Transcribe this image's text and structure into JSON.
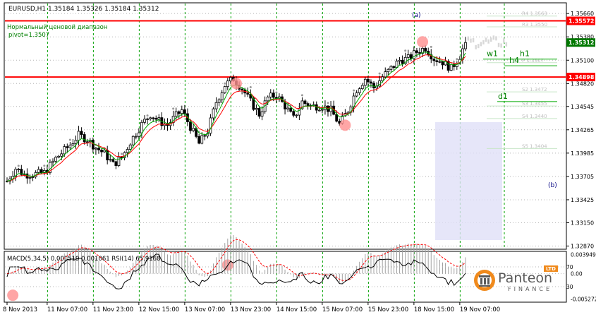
{
  "header": {
    "symbol_line": "EURUSD,H1  1.35184 1.35326 1.35184 1.35312",
    "indicator_name": "Нормальный ценовой диапазон",
    "pivot_label": "pivot=1.3507"
  },
  "markers": {
    "a": "(a)",
    "b": "(b)"
  },
  "levels": [
    {
      "name": "w1",
      "price": 1.3513
    },
    {
      "name": "h1",
      "price": 1.3513
    },
    {
      "name": "h4",
      "price": 1.3505
    },
    {
      "name": "d1",
      "price": 1.3462
    }
  ],
  "faded_levels": [
    "R4 1.3563",
    "R3 1.3550",
    "P 1.3507",
    "S2 1.3472",
    "S3 1.3455",
    "S4 1.3440",
    "S5 1.3404"
  ],
  "price_axis": {
    "ticks": [
      "1.35660",
      "1.35380",
      "1.35100",
      "1.34820",
      "1.34545",
      "1.34265",
      "1.33985",
      "1.33705",
      "1.33425",
      "1.33150",
      "1.32870"
    ],
    "tick_values": [
      1.3566,
      1.3538,
      1.351,
      1.3482,
      1.34545,
      1.34265,
      1.33985,
      1.33705,
      1.33425,
      1.3315,
      1.3287
    ],
    "highlight_labels": [
      {
        "text": "1.35572",
        "value": 1.35572,
        "style": "red"
      },
      {
        "text": "1.35312",
        "value": 1.35312,
        "style": "green"
      },
      {
        "text": "1.34898",
        "value": 1.34898,
        "style": "red"
      }
    ],
    "range": [
      1.3284,
      1.3578
    ]
  },
  "resistance_lines": [
    1.35572,
    1.34898
  ],
  "time_axis": {
    "labels": [
      "8 Nov 2013",
      "11 Nov 07:00",
      "11 Nov 23:00",
      "12 Nov 15:00",
      "13 Nov 07:00",
      "13 Nov 23:00",
      "14 Nov 15:00",
      "15 Nov 07:00",
      "15 Nov 23:00",
      "18 Nov 15:00",
      "19 Nov 07:00"
    ],
    "label_index": [
      0,
      14,
      30,
      46,
      62,
      78,
      94,
      110,
      126,
      142,
      158
    ]
  },
  "macd": {
    "title": "MACD(5,34,5) 0.001519 0.001061  RSI(14) 65.9168",
    "ticks": [
      "0.003949",
      "0.00",
      "-0.005272"
    ],
    "tick_values": [
      0.003949,
      0,
      -0.005272
    ],
    "rsi_ticks": [
      "70",
      "30"
    ]
  },
  "logo": {
    "brand": "Panteon",
    "sub": "FINANCE",
    "badge": "LTD"
  },
  "colors": {
    "axis": "#000000",
    "grid_green": "#00a000",
    "grid_gray": "#b4b4b4",
    "resistance": "#ff0000",
    "ma_green": "#00aa00",
    "ma_red": "#ff0000",
    "candle": "#000000",
    "highlight_circle": "#ff9090",
    "forecast_box": "#e0e0f8",
    "logo_orange": "#f08a1c",
    "logo_gray": "#5a5a5a"
  },
  "chart_data": {
    "type": "candlestick",
    "symbol": "EURUSD",
    "timeframe": "H1",
    "last": {
      "open": 1.35184,
      "high": 1.35326,
      "low": 1.35184,
      "close": 1.35312
    },
    "close_path": [
      [
        0,
        1.3365
      ],
      [
        3,
        1.338
      ],
      [
        6,
        1.3373
      ],
      [
        9,
        1.3373
      ],
      [
        13,
        1.3375
      ],
      [
        17,
        1.3392
      ],
      [
        21,
        1.3405
      ],
      [
        25,
        1.342
      ],
      [
        28,
        1.3415
      ],
      [
        31,
        1.3405
      ],
      [
        34,
        1.3398
      ],
      [
        37,
        1.3385
      ],
      [
        40,
        1.3393
      ],
      [
        43,
        1.3412
      ],
      [
        47,
        1.3433
      ],
      [
        50,
        1.3445
      ],
      [
        53,
        1.3437
      ],
      [
        56,
        1.3432
      ],
      [
        58,
        1.344
      ],
      [
        61,
        1.345
      ],
      [
        64,
        1.343
      ],
      [
        67,
        1.341
      ],
      [
        70,
        1.3425
      ],
      [
        73,
        1.346
      ],
      [
        76,
        1.348
      ],
      [
        79,
        1.3488
      ],
      [
        82,
        1.3476
      ],
      [
        85,
        1.346
      ],
      [
        88,
        1.3445
      ],
      [
        91,
        1.3465
      ],
      [
        94,
        1.3468
      ],
      [
        97,
        1.3455
      ],
      [
        100,
        1.344
      ],
      [
        103,
        1.346
      ],
      [
        106,
        1.3455
      ],
      [
        110,
        1.3455
      ],
      [
        113,
        1.345
      ],
      [
        116,
        1.3433
      ],
      [
        119,
        1.345
      ],
      [
        122,
        1.3475
      ],
      [
        125,
        1.3488
      ],
      [
        128,
        1.3477
      ],
      [
        131,
        1.349
      ],
      [
        134,
        1.35
      ],
      [
        137,
        1.351
      ],
      [
        140,
        1.3512
      ],
      [
        143,
        1.352
      ],
      [
        146,
        1.3525
      ],
      [
        149,
        1.3512
      ],
      [
        152,
        1.3508
      ],
      [
        155,
        1.35
      ],
      [
        158,
        1.3515
      ],
      [
        160,
        1.35312
      ]
    ],
    "moving_averages": [
      "green",
      "red"
    ],
    "highlights": [
      {
        "pane": "price",
        "index": 80,
        "value": 1.3482
      },
      {
        "pane": "price",
        "index": 118,
        "value": 1.3432
      },
      {
        "pane": "price",
        "index": 145,
        "value": 1.3532
      },
      {
        "pane": "macd",
        "index": 2,
        "value": -0.0045
      },
      {
        "pane": "macd",
        "index": 77,
        "value": 0.0018
      }
    ]
  }
}
